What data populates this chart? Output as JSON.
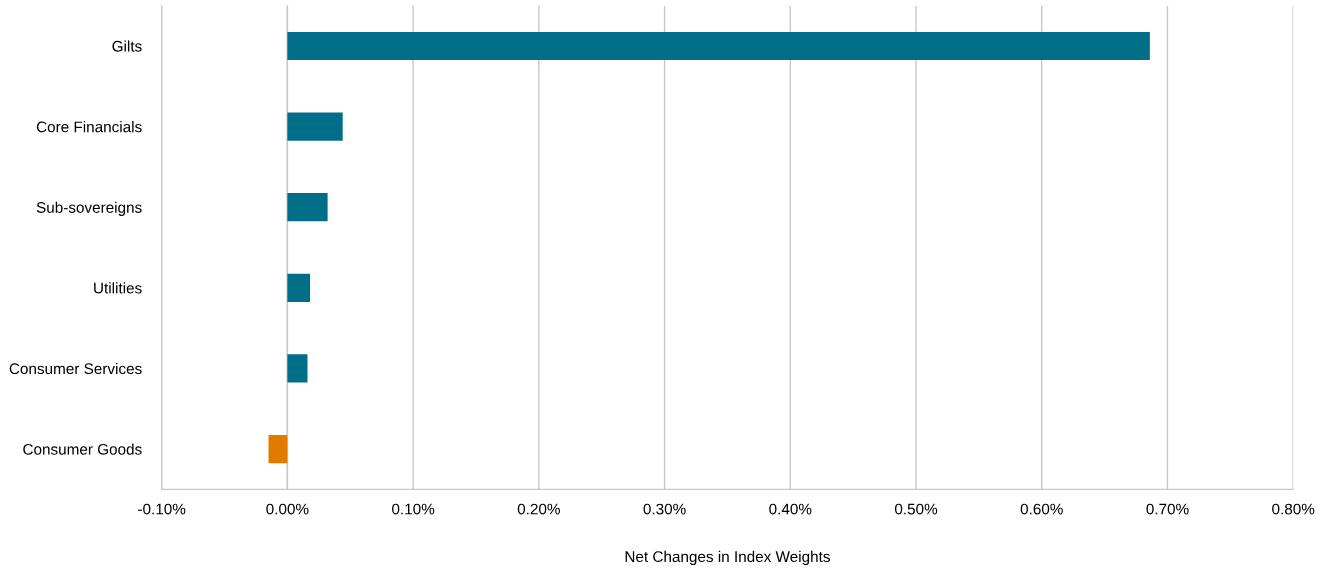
{
  "chart_data": {
    "type": "bar",
    "orientation": "horizontal",
    "xlabel": "Net Changes in Index Weights",
    "categories": [
      "Gilts",
      "Core Financials",
      "Sub-sovereigns",
      "Utilities",
      "Consumer Services",
      "Consumer Goods"
    ],
    "values": [
      0.686,
      0.044,
      0.032,
      0.018,
      0.016,
      -0.015
    ],
    "colors": [
      "#006e89",
      "#006e89",
      "#006e89",
      "#006e89",
      "#006e89",
      "#e07b00"
    ],
    "xlim": [
      -0.1,
      0.8
    ],
    "xticks": [
      {
        "value": -0.1,
        "label": "-0.10%"
      },
      {
        "value": 0.0,
        "label": "0.00%"
      },
      {
        "value": 0.1,
        "label": "0.10%"
      },
      {
        "value": 0.2,
        "label": "0.20%"
      },
      {
        "value": 0.3,
        "label": "0.30%"
      },
      {
        "value": 0.4,
        "label": "0.40%"
      },
      {
        "value": 0.5,
        "label": "0.50%"
      },
      {
        "value": 0.6,
        "label": "0.60%"
      },
      {
        "value": 0.7,
        "label": "0.70%"
      },
      {
        "value": 0.8,
        "label": "0.80%"
      }
    ],
    "grid": "x"
  }
}
